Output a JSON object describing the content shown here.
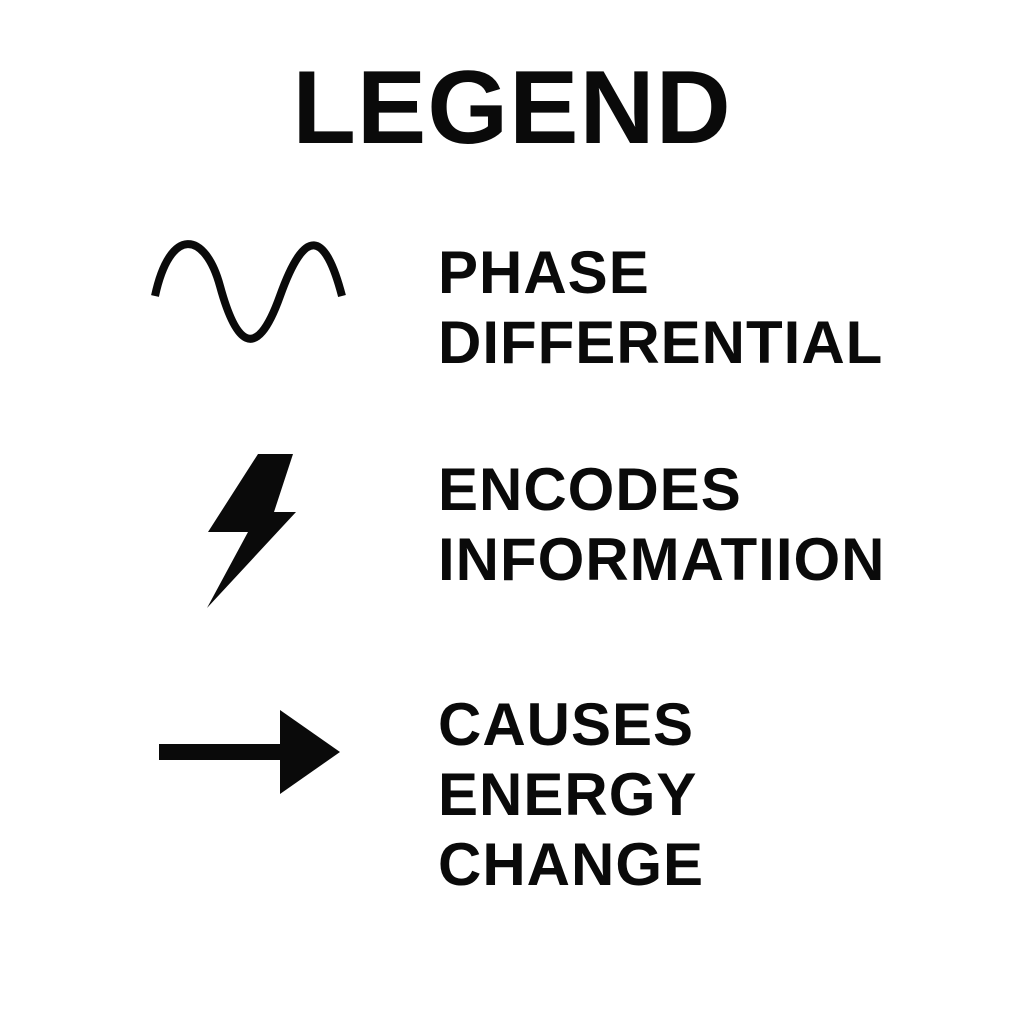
{
  "title": "LEGEND",
  "items": [
    {
      "icon": "sine-wave-icon",
      "lines": [
        "PHASE",
        "DIFFERENTIAL"
      ]
    },
    {
      "icon": "lightning-bolt-icon",
      "lines": [
        "ENCODES",
        "INFORMATIION"
      ]
    },
    {
      "icon": "right-arrow-icon",
      "lines": [
        "CAUSES",
        "ENERGY",
        "CHANGE"
      ]
    }
  ],
  "colors": {
    "ink": "#0a0a0a",
    "background": "#ffffff"
  }
}
